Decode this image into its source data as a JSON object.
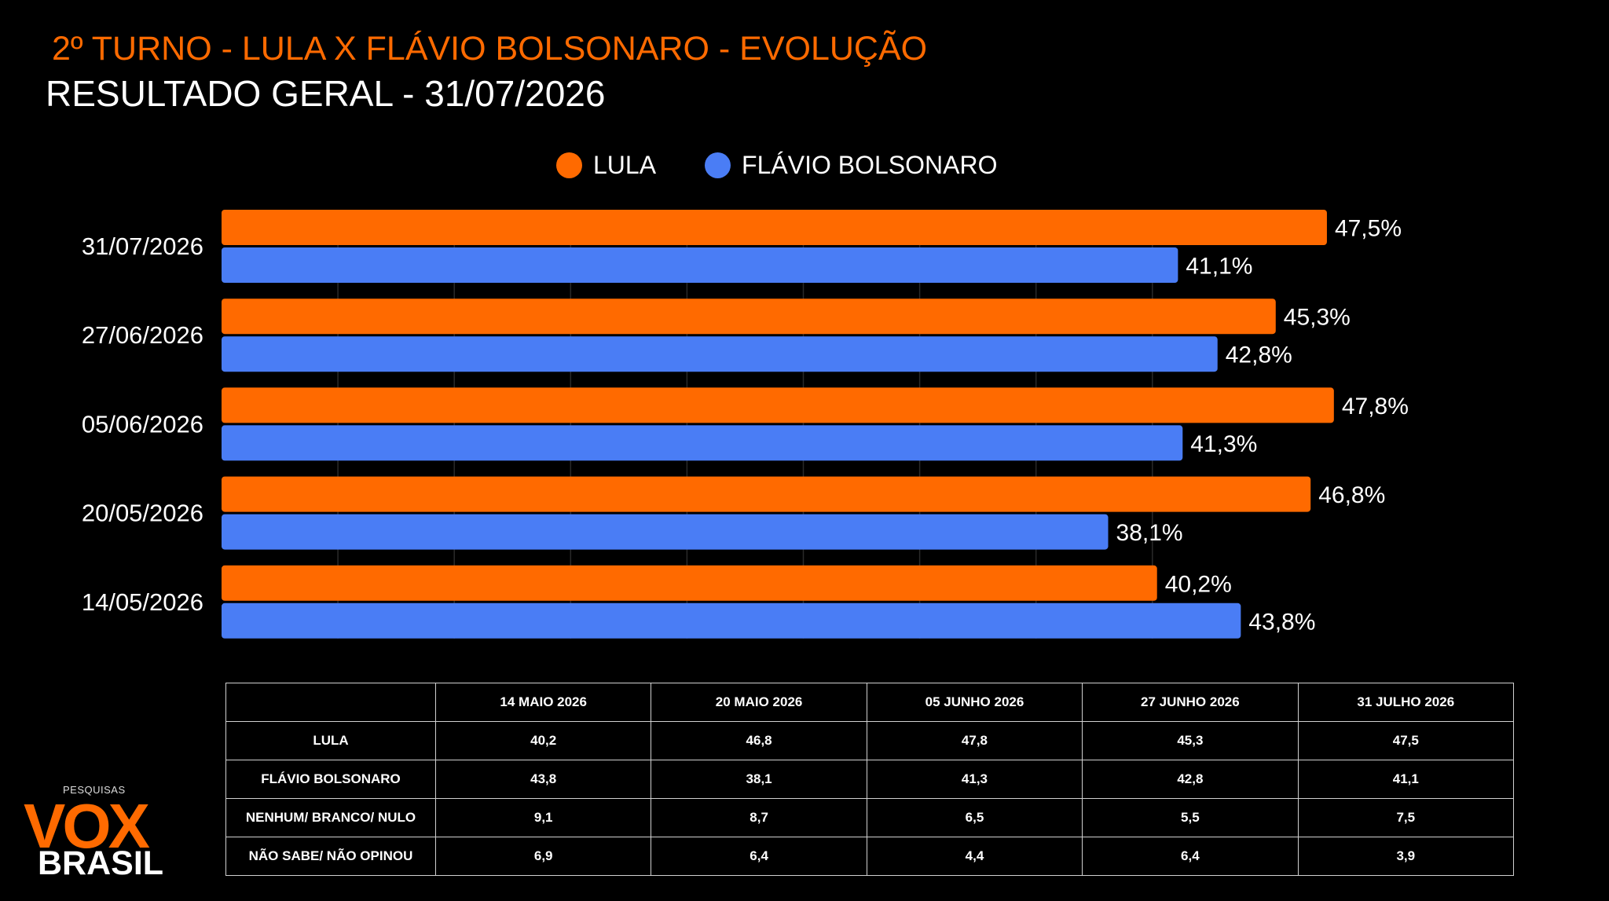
{
  "header": {
    "title": "2º TURNO - LULA X FLÁVIO BOLSONARO - EVOLUÇÃO",
    "subtitle": "RESULTADO GERAL - 31/07/2026"
  },
  "chart_data": {
    "type": "bar",
    "orientation": "horizontal",
    "categories": [
      "31/07/2026",
      "27/06/2026",
      "05/06/2026",
      "20/05/2026",
      "14/05/2026"
    ],
    "series": [
      {
        "name": "LULA",
        "color": "#FF6A00",
        "values": [
          47.5,
          45.3,
          47.8,
          46.8,
          40.2
        ],
        "labels": [
          "47,5%",
          "45,3%",
          "47,8%",
          "46,8%",
          "40,2%"
        ]
      },
      {
        "name": "FLÁVIO BOLSONARO",
        "color": "#4A7DF5",
        "values": [
          41.1,
          42.8,
          41.3,
          38.1,
          43.8
        ],
        "labels": [
          "41,1%",
          "42,8%",
          "41,3%",
          "38,1%",
          "43,8%"
        ]
      }
    ],
    "xlim": [
      0,
      55
    ],
    "grid": true,
    "legend_position": "top-center"
  },
  "table": {
    "headers": [
      "",
      "14 MAIO 2026",
      "20 MAIO 2026",
      "05 JUNHO 2026",
      "27 JUNHO 2026",
      "31 JULHO 2026"
    ],
    "rows": [
      {
        "label": "LULA",
        "values": [
          "40,2",
          "46,8",
          "47,8",
          "45,3",
          "47,5"
        ]
      },
      {
        "label": "FLÁVIO BOLSONARO",
        "values": [
          "43,8",
          "38,1",
          "41,3",
          "42,8",
          "41,1"
        ]
      },
      {
        "label": "NENHUM/ BRANCO/ NULO",
        "values": [
          "9,1",
          "8,7",
          "6,5",
          "5,5",
          "7,5"
        ]
      },
      {
        "label": "NÃO SABE/ NÃO OPINOU",
        "values": [
          "6,9",
          "6,4",
          "4,4",
          "6,4",
          "3,9"
        ]
      }
    ]
  },
  "logo": {
    "top": "PESQUISAS",
    "main": "VOX",
    "bottom": "BRASIL"
  }
}
